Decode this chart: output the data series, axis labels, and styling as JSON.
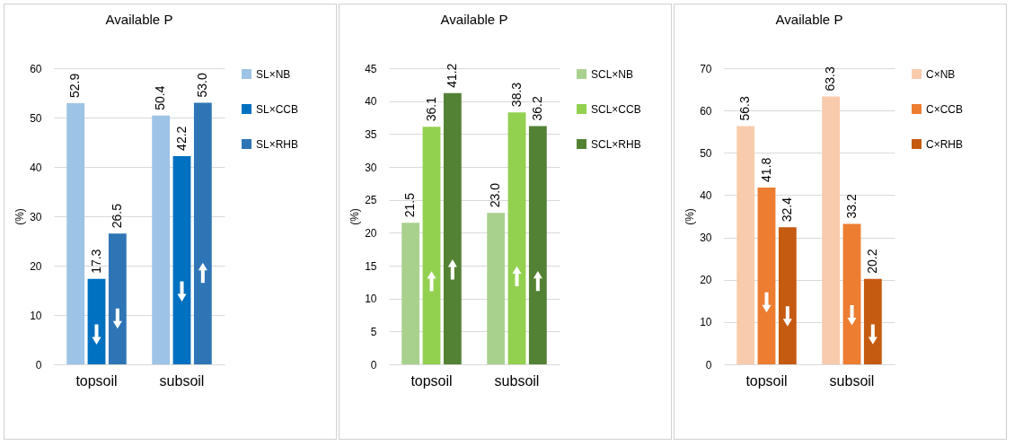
{
  "chart_data": [
    {
      "type": "bar",
      "title": "Available P",
      "ylabel": "(%)",
      "categories": [
        "topsoil",
        "subsoil"
      ],
      "ylim": [
        0,
        60
      ],
      "yticks": [
        0,
        10,
        20,
        30,
        40,
        50,
        60
      ],
      "grid": "y",
      "legend": "right",
      "series": [
        {
          "name": "SL×NB",
          "color": "#9dc3e6",
          "values": [
            52.9,
            50.4
          ],
          "value_labels": [
            "52.9",
            "50.4"
          ]
        },
        {
          "name": "SL×CCB",
          "color": "#0070c0",
          "values": [
            17.3,
            42.2
          ],
          "value_labels": [
            "17.3",
            "42.2"
          ]
        },
        {
          "name": "SL×RHB",
          "color": "#2e75b6",
          "values": [
            26.5,
            53.0
          ],
          "value_labels": [
            "26.5",
            "53.0"
          ]
        }
      ]
    },
    {
      "type": "bar",
      "title": "Available P",
      "ylabel": "(%)",
      "categories": [
        "topsoil",
        "subsoil"
      ],
      "ylim": [
        0,
        45
      ],
      "yticks": [
        0,
        5,
        10,
        15,
        20,
        25,
        30,
        35,
        40,
        45
      ],
      "grid": "y",
      "legend": "right",
      "series": [
        {
          "name": "SCL×NB",
          "color": "#a9d18e",
          "values": [
            21.5,
            23.0
          ],
          "value_labels": [
            "21.5",
            "23.0"
          ]
        },
        {
          "name": "SCL×CCB",
          "color": "#92d050",
          "values": [
            36.1,
            38.3
          ],
          "value_labels": [
            "36.1",
            "38.3"
          ]
        },
        {
          "name": "SCL×RHB",
          "color": "#548235",
          "values": [
            41.2,
            36.2
          ],
          "value_labels": [
            "41.2",
            "36.2"
          ]
        }
      ]
    },
    {
      "type": "bar",
      "title": "Available P",
      "ylabel": "(%)",
      "categories": [
        "topsoil",
        "subsoil"
      ],
      "ylim": [
        0,
        70
      ],
      "yticks": [
        0,
        10,
        20,
        30,
        40,
        50,
        60,
        70
      ],
      "grid": "y",
      "legend": "right",
      "series": [
        {
          "name": "C×NB",
          "color": "#f8cbad",
          "values": [
            56.3,
            63.3
          ],
          "value_labels": [
            "56.3",
            "63.3"
          ]
        },
        {
          "name": "C×CCB",
          "color": "#ed7d31",
          "values": [
            41.8,
            33.2
          ],
          "value_labels": [
            "41.8",
            "33.2"
          ]
        },
        {
          "name": "C×RHB",
          "color": "#c55a11",
          "values": [
            32.4,
            20.2
          ],
          "value_labels": [
            "32.4",
            "20.2"
          ]
        }
      ]
    }
  ]
}
